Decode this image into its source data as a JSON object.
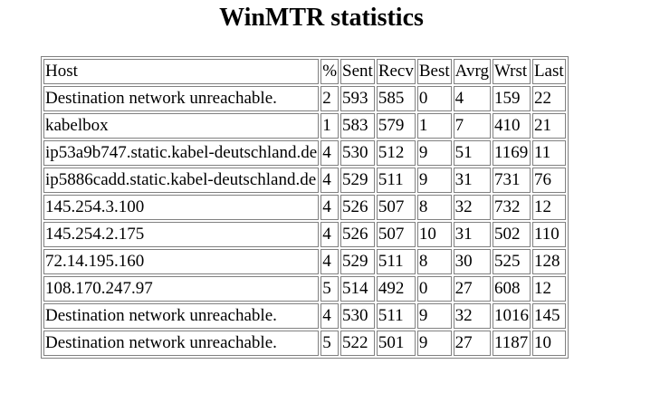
{
  "title": "WinMTR statistics",
  "table": {
    "header": [
      "Host",
      "%",
      "Sent",
      "Recv",
      "Best",
      "Avrg",
      "Wrst",
      "Last"
    ],
    "rows": [
      [
        "Destination network unreachable.",
        2,
        593,
        585,
        0,
        4,
        159,
        22
      ],
      [
        "kabelbox",
        1,
        583,
        579,
        1,
        7,
        410,
        21
      ],
      [
        "ip53a9b747.static.kabel-deutschland.de",
        4,
        530,
        512,
        9,
        51,
        1169,
        11
      ],
      [
        "ip5886cadd.static.kabel-deutschland.de",
        4,
        529,
        511,
        9,
        31,
        731,
        76
      ],
      [
        "145.254.3.100",
        4,
        526,
        507,
        8,
        32,
        732,
        12
      ],
      [
        "145.254.2.175",
        4,
        526,
        507,
        10,
        31,
        502,
        110
      ],
      [
        "72.14.195.160",
        4,
        529,
        511,
        8,
        30,
        525,
        128
      ],
      [
        "108.170.247.97",
        5,
        514,
        492,
        0,
        27,
        608,
        12
      ],
      [
        "Destination network unreachable.",
        4,
        530,
        511,
        9,
        32,
        1016,
        145
      ],
      [
        "Destination network unreachable.",
        5,
        522,
        501,
        9,
        27,
        1187,
        10
      ]
    ]
  }
}
